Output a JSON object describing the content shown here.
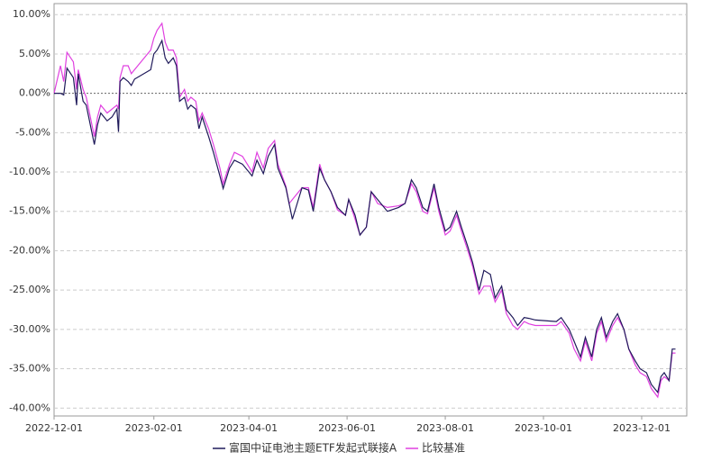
{
  "chart_data": {
    "type": "line",
    "x": [
      "2022-12-01",
      "2022-12-05",
      "2022-12-07",
      "2022-12-09",
      "2022-12-13",
      "2022-12-15",
      "2022-12-16",
      "2022-12-19",
      "2022-12-21",
      "2022-12-26",
      "2022-12-28",
      "2022-12-30",
      "2023-01-03",
      "2023-01-06",
      "2023-01-09",
      "2023-01-10",
      "2023-01-11",
      "2023-01-13",
      "2023-01-16",
      "2023-01-18",
      "2023-01-20",
      "2023-01-30",
      "2023-02-01",
      "2023-02-03",
      "2023-02-06",
      "2023-02-08",
      "2023-02-10",
      "2023-02-13",
      "2023-02-15",
      "2023-02-17",
      "2023-02-20",
      "2023-02-22",
      "2023-02-24",
      "2023-02-27",
      "2023-03-01",
      "2023-03-03",
      "2023-03-07",
      "2023-03-10",
      "2023-03-14",
      "2023-03-16",
      "2023-03-20",
      "2023-03-23",
      "2023-03-28",
      "2023-04-03",
      "2023-04-06",
      "2023-04-10",
      "2023-04-13",
      "2023-04-17",
      "2023-04-19",
      "2023-04-24",
      "2023-04-26",
      "2023-04-28",
      "2023-05-04",
      "2023-05-08",
      "2023-05-11",
      "2023-05-15",
      "2023-05-18",
      "2023-05-22",
      "2023-05-26",
      "2023-05-31",
      "2023-06-02",
      "2023-06-06",
      "2023-06-09",
      "2023-06-13",
      "2023-06-16",
      "2023-06-20",
      "2023-06-26",
      "2023-07-03",
      "2023-07-07",
      "2023-07-11",
      "2023-07-14",
      "2023-07-18",
      "2023-07-21",
      "2023-07-25",
      "2023-07-28",
      "2023-08-01",
      "2023-08-04",
      "2023-08-08",
      "2023-08-11",
      "2023-08-15",
      "2023-08-18",
      "2023-08-22",
      "2023-08-25",
      "2023-08-29",
      "2023-09-01",
      "2023-09-05",
      "2023-09-08",
      "2023-09-12",
      "2023-09-15",
      "2023-09-19",
      "2023-09-22",
      "2023-09-26",
      "2023-10-09",
      "2023-10-12",
      "2023-10-17",
      "2023-10-20",
      "2023-10-24",
      "2023-10-27",
      "2023-10-31",
      "2023-11-03",
      "2023-11-06",
      "2023-11-09",
      "2023-11-13",
      "2023-11-16",
      "2023-11-20",
      "2023-11-23",
      "2023-11-27",
      "2023-11-30",
      "2023-12-04",
      "2023-12-07",
      "2023-12-11",
      "2023-12-13",
      "2023-12-15",
      "2023-12-18",
      "2023-12-20",
      "2023-12-22"
    ],
    "series": [
      {
        "name": "富国中证电池主题ETF发起式联接A",
        "color": "#1f1a5a",
        "values": [
          0,
          0,
          -0.2,
          3.2,
          2.0,
          -1.5,
          2.5,
          -1.0,
          -1.5,
          -6.5,
          -4.0,
          -2.5,
          -3.5,
          -3.0,
          -2.0,
          -4.9,
          1.5,
          2.0,
          1.5,
          1.0,
          1.8,
          3.0,
          5.0,
          5.5,
          6.7,
          4.5,
          3.8,
          4.5,
          3.5,
          -1.0,
          -0.5,
          -2.0,
          -1.5,
          -2.0,
          -4.5,
          -3.0,
          -5.5,
          -7.5,
          -10.5,
          -12.1,
          -9.5,
          -8.5,
          -9.0,
          -10.5,
          -8.5,
          -10.2,
          -8.0,
          -6.5,
          -9.5,
          -12.0,
          -14.0,
          -16.0,
          -12.0,
          -12.3,
          -15.0,
          -9.5,
          -11.0,
          -12.5,
          -14.5,
          -15.5,
          -13.5,
          -15.5,
          -18.0,
          -17.0,
          -12.5,
          -13.5,
          -15.0,
          -14.5,
          -14.0,
          -11.0,
          -12.0,
          -14.5,
          -15.0,
          -11.5,
          -14.5,
          -17.5,
          -17.0,
          -15.0,
          -17.0,
          -19.5,
          -21.5,
          -25.0,
          -22.5,
          -23.0,
          -26.0,
          -24.5,
          -27.5,
          -28.5,
          -29.5,
          -28.5,
          -28.6,
          -28.8,
          -29.0,
          -28.5,
          -30.0,
          -31.5,
          -33.5,
          -31.0,
          -33.5,
          -30.0,
          -28.5,
          -31.0,
          -29.0,
          -28.0,
          -30.0,
          -32.5,
          -34.0,
          -35.0,
          -35.5,
          -37.0,
          -38.0,
          -36.0,
          -35.5,
          -36.5,
          -32.5,
          -32.5
        ]
      },
      {
        "name": "比较基准",
        "color": "#e040e0",
        "values": [
          0,
          3.5,
          1.5,
          5.2,
          4.0,
          0.5,
          3.0,
          0.5,
          -0.5,
          -5.5,
          -3.0,
          -1.5,
          -2.5,
          -2.0,
          -1.5,
          -2.0,
          2.0,
          3.5,
          3.5,
          2.5,
          3.0,
          5.5,
          7.0,
          8.0,
          8.9,
          6.5,
          5.5,
          5.5,
          4.5,
          -0.5,
          0.5,
          -1.0,
          -0.5,
          -1.0,
          -3.5,
          -2.5,
          -4.5,
          -6.5,
          -9.5,
          -11.5,
          -9.0,
          -7.5,
          -8.0,
          -10.0,
          -7.5,
          -9.5,
          -7.0,
          -6.0,
          -9.0,
          -11.8,
          -14.0,
          -13.5,
          -12.0,
          -12.0,
          -14.5,
          -9.0,
          -11.0,
          -12.5,
          -14.8,
          -15.5,
          -13.5,
          -16.0,
          -18.0,
          -17.0,
          -12.5,
          -14.0,
          -14.5,
          -14.3,
          -14.0,
          -11.5,
          -12.5,
          -15.0,
          -15.3,
          -12.0,
          -15.0,
          -18.0,
          -17.5,
          -15.5,
          -17.5,
          -20.0,
          -22.0,
          -25.5,
          -24.5,
          -24.5,
          -26.5,
          -25.0,
          -28.0,
          -29.5,
          -30.0,
          -29.0,
          -29.3,
          -29.5,
          -29.5,
          -29.0,
          -30.5,
          -32.5,
          -34.0,
          -31.5,
          -34.0,
          -30.5,
          -29.0,
          -31.5,
          -29.5,
          -28.5,
          -30.0,
          -32.5,
          -34.5,
          -35.5,
          -36.0,
          -37.5,
          -38.6,
          -36.5,
          -36.0,
          -36.5,
          -33.0,
          -33.0
        ]
      }
    ],
    "xlim": [
      "2022-12-01",
      "2023-12-29"
    ],
    "xticks": [
      "2022-12-01",
      "2023-02-01",
      "2023-04-01",
      "2023-06-01",
      "2023-08-01",
      "2023-10-01",
      "2023-12-01"
    ],
    "ylim": [
      -41,
      11.4
    ],
    "yticks": [
      {
        "value": 10,
        "label": "10.00%"
      },
      {
        "value": 5,
        "label": "5.00%"
      },
      {
        "value": 0,
        "label": "0.00%"
      },
      {
        "value": -5,
        "label": "-5.00%"
      },
      {
        "value": -10,
        "label": "-10.00%"
      },
      {
        "value": -15,
        "label": "-15.00%"
      },
      {
        "value": -20,
        "label": "-20.00%"
      },
      {
        "value": -25,
        "label": "-25.00%"
      },
      {
        "value": -30,
        "label": "-30.00%"
      },
      {
        "value": -35,
        "label": "-35.00%"
      },
      {
        "value": -40,
        "label": "-40.00%"
      }
    ],
    "grid": true,
    "legend": "bottom"
  }
}
